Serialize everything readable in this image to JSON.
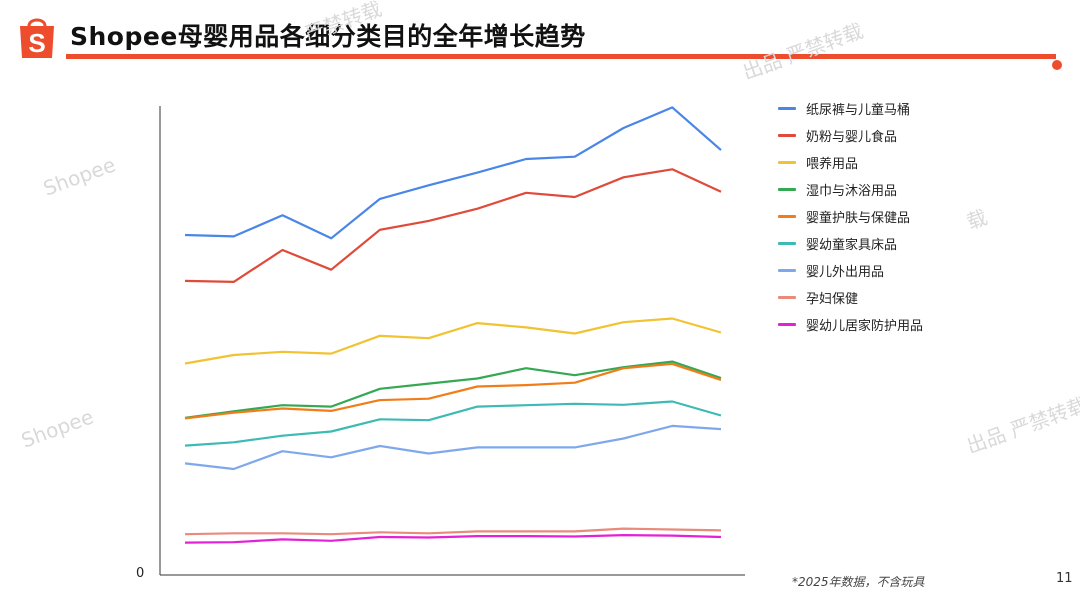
{
  "header": {
    "title": "Shopee母婴用品各细分类目的全年增长趋势"
  },
  "watermarks": [
    "严禁转载",
    "出品 严禁转载",
    "Shopee",
    "载",
    "Shopee",
    "出品 严禁转载"
  ],
  "footnote": "*2025年数据，不含玩具",
  "page_number": "11",
  "colors": {
    "accent": "#ee4d2d"
  },
  "chart_data": {
    "type": "line",
    "title": "",
    "xlabel": "",
    "ylabel": "",
    "ylim": [
      0,
      100
    ],
    "y_tick_labels": [
      "0"
    ],
    "legend_position": "right",
    "grid": false,
    "x": [
      1,
      2,
      3,
      4,
      5,
      6,
      7,
      8,
      9,
      10,
      11,
      12
    ],
    "series": [
      {
        "name": "纸尿裤与儿童马桶",
        "color": "#4a86e8",
        "values": [
          72.5,
          72.2,
          76.7,
          71.8,
          80.2,
          83.1,
          85.8,
          88.7,
          89.2,
          95.3,
          99.7,
          90.6
        ]
      },
      {
        "name": "奶粉与婴儿食品",
        "color": "#e04a3a",
        "values": [
          62.7,
          62.5,
          69.3,
          65.1,
          73.6,
          75.5,
          78.1,
          81.5,
          80.6,
          84.8,
          86.5,
          81.7
        ]
      },
      {
        "name": "喂养用品",
        "color": "#f1c232",
        "values": [
          45.1,
          46.9,
          47.6,
          47.2,
          51.0,
          50.5,
          53.7,
          52.8,
          51.5,
          53.9,
          54.7,
          51.7
        ]
      },
      {
        "name": "湿巾与沐浴用品",
        "color": "#34a853",
        "values": [
          33.5,
          34.9,
          36.2,
          35.9,
          39.7,
          40.8,
          41.9,
          44.1,
          42.6,
          44.3,
          45.5,
          42.0
        ]
      },
      {
        "name": "婴童护肤与保健品",
        "color": "#f07d1a",
        "values": [
          33.4,
          34.6,
          35.5,
          35.0,
          37.3,
          37.6,
          40.2,
          40.5,
          41.0,
          44.1,
          45.0,
          41.6
        ]
      },
      {
        "name": "婴幼童家具床品",
        "color": "#3dbab4",
        "values": [
          27.6,
          28.3,
          29.7,
          30.6,
          33.2,
          33.0,
          35.9,
          36.2,
          36.5,
          36.3,
          37.0,
          34.0
        ]
      },
      {
        "name": "婴儿外出用品",
        "color": "#7fa8ec",
        "values": [
          23.8,
          22.6,
          26.4,
          25.1,
          27.5,
          25.9,
          27.2,
          27.2,
          27.2,
          29.1,
          31.8,
          31.1
        ]
      },
      {
        "name": "孕妇保健",
        "color": "#e88a7c",
        "values": [
          8.7,
          8.9,
          8.9,
          8.7,
          9.1,
          8.9,
          9.3,
          9.3,
          9.3,
          9.9,
          9.7,
          9.5
        ]
      },
      {
        "name": "婴幼儿居家防护用品",
        "color": "#e321d6",
        "values": [
          6.9,
          7.0,
          7.6,
          7.3,
          8.1,
          8.0,
          8.3,
          8.3,
          8.2,
          8.5,
          8.4,
          8.1
        ]
      }
    ]
  }
}
